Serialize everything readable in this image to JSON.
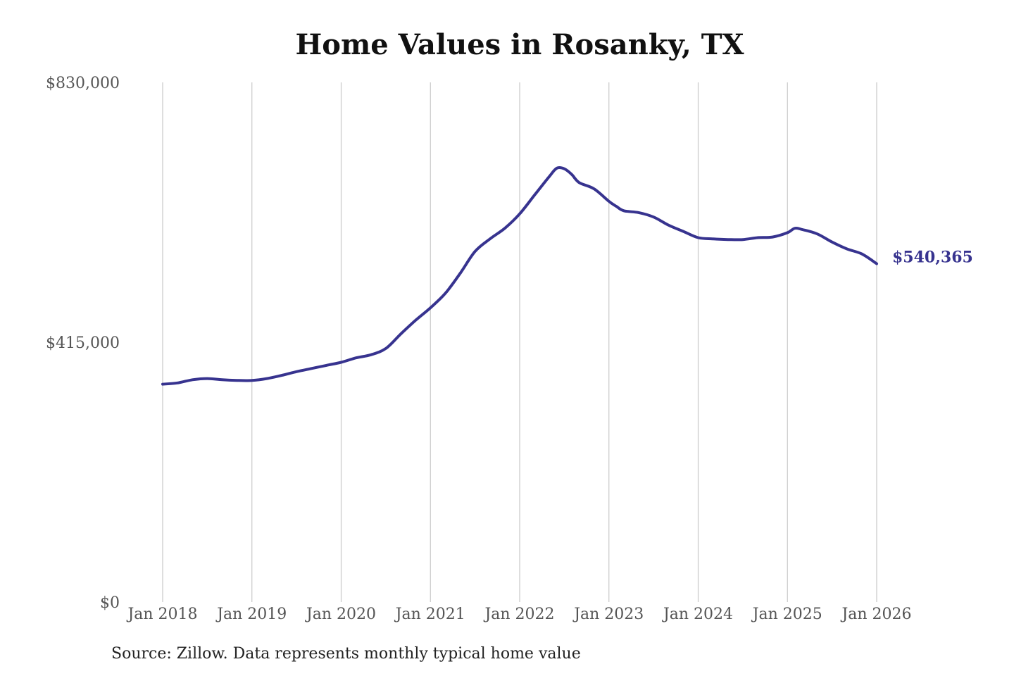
{
  "chart_data": {
    "type": "line",
    "title": "Home Values in Rosanky, TX",
    "source_note": "Source: Zillow. Data represents monthly typical home value",
    "ylim": [
      0,
      830000
    ],
    "y_ticks": [
      {
        "value": 0,
        "label": "$0"
      },
      {
        "value": 415000,
        "label": "$415,000"
      },
      {
        "value": 830000,
        "label": "$830,000"
      }
    ],
    "x_ticks": [
      {
        "date": "2018-01",
        "label": "Jan 2018"
      },
      {
        "date": "2019-01",
        "label": "Jan 2019"
      },
      {
        "date": "2020-01",
        "label": "Jan 2020"
      },
      {
        "date": "2021-01",
        "label": "Jan 2021"
      },
      {
        "date": "2022-01",
        "label": "Jan 2022"
      },
      {
        "date": "2023-01",
        "label": "Jan 2023"
      },
      {
        "date": "2024-01",
        "label": "Jan 2024"
      },
      {
        "date": "2025-01",
        "label": "Jan 2025"
      },
      {
        "date": "2026-01",
        "label": "Jan 2026"
      }
    ],
    "grid": "vertical",
    "line_color": "#37338f",
    "end_label": "$540,365",
    "series": [
      {
        "x": [
          "2018-01",
          "2018-03",
          "2018-05",
          "2018-07",
          "2018-09",
          "2018-11",
          "2019-01",
          "2019-03",
          "2019-05",
          "2019-07",
          "2019-09",
          "2019-11",
          "2020-01",
          "2020-03",
          "2020-05",
          "2020-07",
          "2020-09",
          "2020-11",
          "2021-01",
          "2021-03",
          "2021-05",
          "2021-07",
          "2021-09",
          "2021-11",
          "2022-01",
          "2022-03",
          "2022-05",
          "2022-06",
          "2022-07",
          "2022-08",
          "2022-09",
          "2022-11",
          "2023-01",
          "2023-02",
          "2023-03",
          "2023-05",
          "2023-07",
          "2023-09",
          "2023-11",
          "2024-01",
          "2024-03",
          "2024-05",
          "2024-07",
          "2024-09",
          "2024-11",
          "2025-01",
          "2025-02",
          "2025-03",
          "2025-05",
          "2025-07",
          "2025-09",
          "2025-11",
          "2026-01"
        ],
        "values": [
          348000,
          350000,
          355000,
          357000,
          355000,
          354000,
          354000,
          357000,
          362000,
          368000,
          373000,
          378000,
          383000,
          390000,
          395000,
          405000,
          428000,
          450000,
          470000,
          493000,
          525000,
          560000,
          580000,
          597000,
          620000,
          650000,
          680000,
          693000,
          692000,
          683000,
          670000,
          660000,
          640000,
          632000,
          625000,
          622000,
          615000,
          602000,
          592000,
          582000,
          580000,
          579000,
          579000,
          582000,
          583000,
          590000,
          597000,
          595000,
          588000,
          575000,
          564000,
          556000,
          540365
        ]
      }
    ]
  }
}
